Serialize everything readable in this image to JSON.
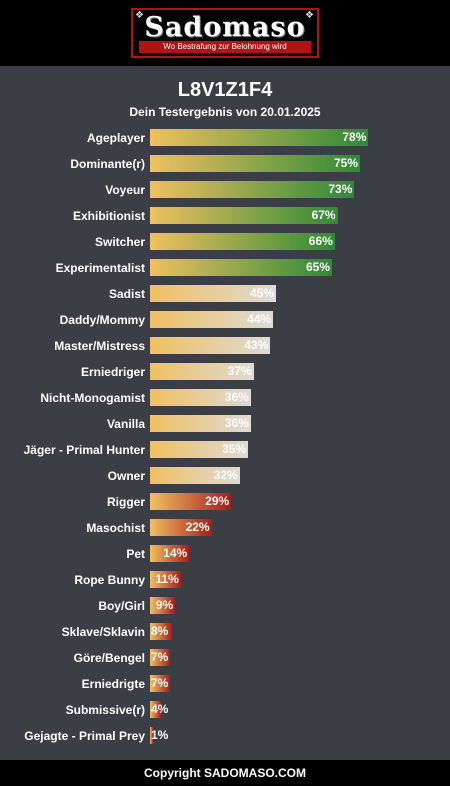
{
  "header": {
    "logo_text": "Sadomaso",
    "logo_tagline": "Wo Bestrafung zur Belohnung wird"
  },
  "result": {
    "title": "L8V1Z1F4",
    "subtitle": "Dein Testergebnis von 20.01.2025"
  },
  "colors": {
    "gradient_start": "#f0c060",
    "high": "#2e8a36",
    "mid": "#dedad6",
    "low": "#a81c1c",
    "background": "#3b3f45"
  },
  "chart_data": {
    "type": "bar",
    "orientation": "horizontal",
    "xlim": [
      0,
      100
    ],
    "unit": "%",
    "categories": [
      "Ageplayer",
      "Dominante(r)",
      "Voyeur",
      "Exhibitionist",
      "Switcher",
      "Experimentalist",
      "Sadist",
      "Daddy/Mommy",
      "Master/Mistress",
      "Erniedriger",
      "Nicht-Monogamist",
      "Vanilla",
      "Jäger - Primal Hunter",
      "Owner",
      "Rigger",
      "Masochist",
      "Pet",
      "Rope Bunny",
      "Boy/Girl",
      "Sklave/Sklavin",
      "Göre/Bengel",
      "Erniedrigte",
      "Submissive(r)",
      "Gejagte - Primal Prey"
    ],
    "values": [
      78,
      75,
      73,
      67,
      66,
      65,
      45,
      44,
      43,
      37,
      36,
      36,
      35,
      32,
      29,
      22,
      14,
      11,
      9,
      8,
      7,
      7,
      4,
      1
    ]
  },
  "footer": {
    "copyright": "Copyright SADOMASO.COM"
  }
}
